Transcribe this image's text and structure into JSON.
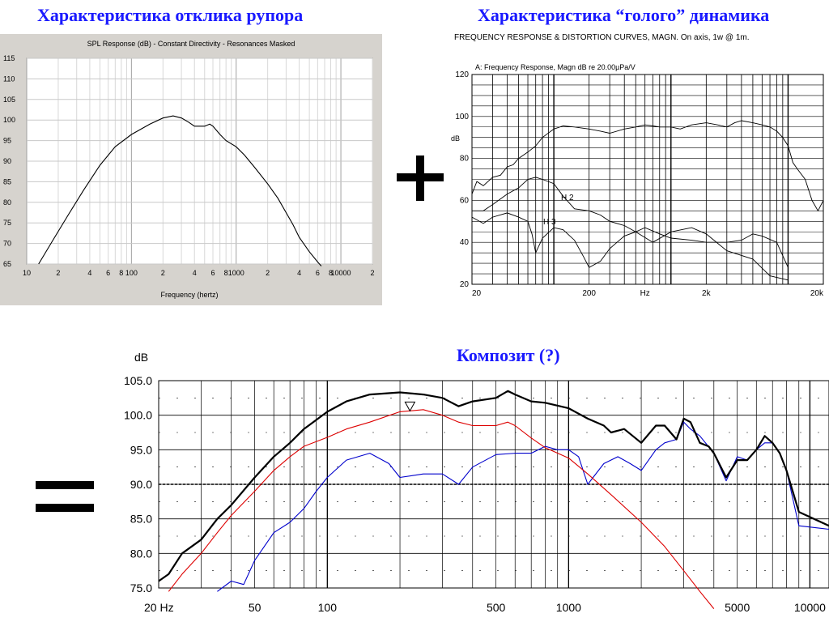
{
  "headings": {
    "left": "Характеристика отклика рупора",
    "right": "Характеристика “голого” динамика",
    "bottom": "Композит (?)"
  },
  "colors": {
    "heading": "#1a1aff",
    "composite": "#000000",
    "horn_series": "#dd0000",
    "driver_series": "#0000cc",
    "left_panel_bg": "#d6d3ce"
  },
  "chart_data": [
    {
      "type": "line",
      "title": "SPL Response (dB) - Constant Directivity - Resonances Masked",
      "xlabel": "Frequency (hertz)",
      "ylabel": "",
      "xscale": "log",
      "xlim": [
        10,
        20000
      ],
      "ylim": [
        65,
        115
      ],
      "yticks": [
        65,
        70,
        75,
        80,
        85,
        90,
        95,
        100,
        105,
        110,
        115
      ],
      "xtick_labels": [
        {
          "x": 10,
          "label": "10"
        },
        {
          "x": 20,
          "label": "2"
        },
        {
          "x": 40,
          "label": "4"
        },
        {
          "x": 60,
          "label": "6"
        },
        {
          "x": 80,
          "label": "8"
        },
        {
          "x": 100,
          "label": "100"
        },
        {
          "x": 200,
          "label": "2"
        },
        {
          "x": 400,
          "label": "4"
        },
        {
          "x": 600,
          "label": "6"
        },
        {
          "x": 800,
          "label": "8"
        },
        {
          "x": 1000,
          "label": "1000"
        },
        {
          "x": 2000,
          "label": "2"
        },
        {
          "x": 4000,
          "label": "4"
        },
        {
          "x": 6000,
          "label": "6"
        },
        {
          "x": 8000,
          "label": "8"
        },
        {
          "x": 10000,
          "label": "10000"
        },
        {
          "x": 20000,
          "label": "2"
        }
      ],
      "grid": true,
      "series": [
        {
          "x": [
            13,
            18,
            25,
            35,
            50,
            70,
            100,
            150,
            200,
            250,
            300,
            350,
            400,
            500,
            560,
            600,
            700,
            800,
            1000,
            1200,
            1500,
            2000,
            2500,
            3000,
            3500,
            4000,
            5000,
            6000,
            6500
          ],
          "values": [
            65,
            71,
            77,
            83,
            89,
            93.5,
            96.5,
            99,
            100.5,
            101,
            100.5,
            99.5,
            98.5,
            98.5,
            99,
            98.5,
            96.5,
            95,
            93.5,
            91.5,
            88.5,
            84.5,
            81,
            77.5,
            74.5,
            71.5,
            68,
            65.5,
            64.5
          ]
        }
      ]
    },
    {
      "type": "line",
      "title": "FREQUENCY RESPONSE & DISTORTION CURVES, MAGN. On axis, 1w @ 1m.",
      "subtitle": "A: Frequency Response, Magn dB re 20.00µPa/V",
      "xlabel": "Hz",
      "ylabel": "dB",
      "xscale": "log",
      "xlim": [
        20,
        20000
      ],
      "ylim": [
        20,
        120
      ],
      "yticks": [
        20,
        40,
        60,
        80,
        100,
        120
      ],
      "xtick_labels": [
        {
          "x": 20,
          "label": "20"
        },
        {
          "x": 200,
          "label": "200"
        },
        {
          "x": 600,
          "label": "Hz"
        },
        {
          "x": 2000,
          "label": "2k"
        },
        {
          "x": 20000,
          "label": "20k"
        }
      ],
      "grid": true,
      "annotations": [
        "H 2",
        "H 3"
      ],
      "series": [
        {
          "x": [
            20,
            22,
            25,
            30,
            35,
            40,
            45,
            50,
            60,
            70,
            80,
            100,
            120,
            150,
            200,
            250,
            300,
            400,
            500,
            600,
            700,
            800,
            1000,
            1200,
            1500,
            2000,
            2500,
            3000,
            3500,
            4000,
            5000,
            6000,
            7000,
            8000,
            9000,
            10000,
            11000,
            12000,
            14000,
            16000,
            18000,
            20000
          ],
          "values": [
            63,
            69,
            67,
            71,
            72,
            76,
            77,
            80,
            83,
            86,
            90,
            94,
            95.5,
            95,
            94,
            93,
            92,
            94,
            95,
            96,
            95.5,
            95,
            95,
            94,
            96,
            97,
            96,
            95,
            97,
            98,
            97,
            96,
            95,
            93,
            90,
            86,
            78,
            75,
            70,
            60,
            55,
            60
          ]
        },
        {
          "name": "H 2",
          "x": [
            20,
            25,
            30,
            40,
            50,
            60,
            70,
            80,
            100,
            120,
            150,
            200,
            250,
            300,
            400,
            500,
            600,
            800,
            1000,
            1500,
            2000,
            3000,
            4000,
            5000,
            6000,
            8000,
            10000
          ],
          "values": [
            55,
            55,
            58,
            63,
            66,
            70,
            71,
            70,
            68,
            62,
            56,
            55,
            53,
            50,
            48,
            45,
            47,
            44,
            42,
            41,
            40,
            40,
            41,
            44,
            43,
            40,
            28
          ]
        },
        {
          "name": "H 3",
          "x": [
            20,
            25,
            30,
            40,
            50,
            60,
            65,
            70,
            80,
            100,
            120,
            150,
            180,
            200,
            250,
            300,
            400,
            500,
            700,
            1000,
            1500,
            2000,
            3000,
            5000,
            7000,
            10000
          ],
          "values": [
            52,
            49,
            52,
            54,
            52,
            50,
            44,
            35,
            42,
            47,
            46,
            41,
            33,
            28,
            31,
            37,
            43,
            45,
            40,
            45,
            47,
            44,
            36,
            32,
            24,
            22
          ]
        }
      ]
    },
    {
      "type": "line",
      "title": "",
      "xlabel": "",
      "ylabel": "dB",
      "xscale": "log",
      "xlim": [
        20,
        12000
      ],
      "ylim": [
        75,
        105
      ],
      "yticks": [
        75.0,
        80.0,
        85.0,
        90.0,
        95.0,
        100.0,
        105.0
      ],
      "ytick_labels": [
        "75.0",
        "80.0",
        "85.0",
        "90.0",
        "95.0",
        "100.0",
        "105.0"
      ],
      "xtick_labels": [
        {
          "x": 20,
          "label": "20 Hz"
        },
        {
          "x": 50,
          "label": "50"
        },
        {
          "x": 100,
          "label": "100"
        },
        {
          "x": 500,
          "label": "500"
        },
        {
          "x": 1000,
          "label": "1000"
        },
        {
          "x": 5000,
          "label": "5000"
        },
        {
          "x": 10000,
          "label": "10000"
        }
      ],
      "reference_line": 90,
      "marker": {
        "x": 220,
        "y": 101.2,
        "shape": "triangle-down"
      },
      "grid": true,
      "series": [
        {
          "x": [
            20,
            22,
            25,
            30,
            35,
            40,
            50,
            60,
            70,
            80,
            100,
            120,
            150,
            200,
            250,
            300,
            350,
            400,
            500,
            560,
            600,
            700,
            800,
            1000,
            1200,
            1400,
            1500,
            1700,
            2000,
            2300,
            2500,
            2800,
            3000,
            3200,
            3500,
            3800,
            4000,
            4500,
            5000,
            5500,
            6000,
            6500,
            7000,
            7500,
            8000,
            9000,
            12000
          ],
          "values": [
            76,
            77,
            80,
            82,
            85,
            87,
            91,
            94,
            96,
            98,
            100.5,
            102,
            103,
            103.3,
            103,
            102.5,
            101.3,
            102,
            102.5,
            103.5,
            103,
            102,
            101.8,
            101,
            99.5,
            98.5,
            97.5,
            98,
            96,
            98.5,
            98.5,
            96.5,
            99.5,
            99,
            96,
            95.5,
            94.5,
            91,
            93.5,
            93.5,
            95,
            97,
            96,
            94.5,
            92,
            86,
            84
          ]
        },
        {
          "x": [
            22,
            25,
            30,
            35,
            40,
            50,
            60,
            70,
            80,
            100,
            120,
            150,
            200,
            250,
            300,
            350,
            400,
            500,
            560,
            600,
            700,
            800,
            1000,
            1200,
            1500,
            2000,
            2500,
            3000,
            3500,
            4000
          ],
          "values": [
            74.5,
            77,
            80,
            83,
            85.5,
            89,
            92,
            94,
            95.5,
            96.8,
            98,
            99,
            100.5,
            100.8,
            100,
            99,
            98.5,
            98.5,
            99,
            98.5,
            96.7,
            95.3,
            93.8,
            91.5,
            88.5,
            84.5,
            81,
            77.5,
            74.5,
            72
          ]
        },
        {
          "x": [
            35,
            40,
            45,
            50,
            60,
            70,
            80,
            90,
            100,
            120,
            150,
            180,
            200,
            250,
            300,
            350,
            400,
            500,
            600,
            700,
            800,
            900,
            1000,
            1100,
            1200,
            1400,
            1600,
            1800,
            2000,
            2300,
            2500,
            2800,
            3000,
            3200,
            3500,
            4000,
            4500,
            5000,
            5500,
            6000,
            6500,
            7000,
            7500,
            8000,
            9000,
            12000
          ],
          "values": [
            74.5,
            76,
            75.5,
            79,
            83,
            84.5,
            86.5,
            89,
            91,
            93.5,
            94.5,
            93,
            91,
            91.5,
            91.5,
            90,
            92.5,
            94.3,
            94.5,
            94.5,
            95.5,
            95,
            95,
            94,
            90,
            93,
            94,
            93,
            92,
            95,
            96,
            96.5,
            99,
            98,
            97,
            94.5,
            90.5,
            94,
            93.5,
            95,
            96,
            96,
            94.5,
            92,
            84,
            83.5
          ]
        }
      ]
    }
  ]
}
